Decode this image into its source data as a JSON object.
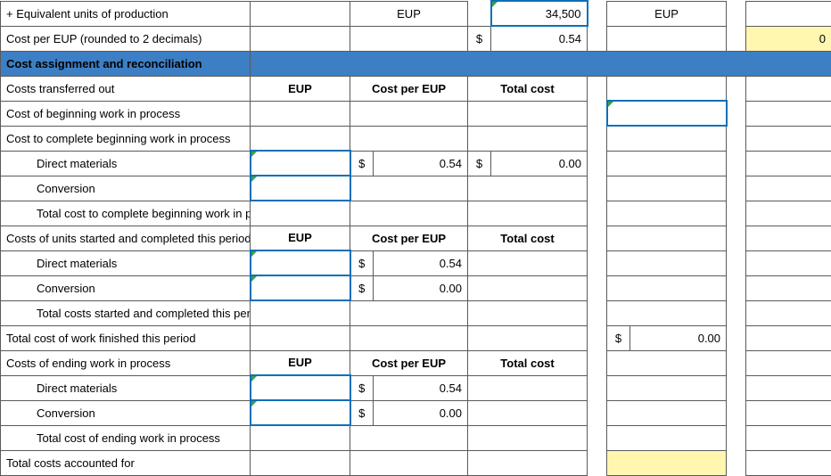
{
  "colors": {
    "section_bg": "#3d7fc4",
    "highlight_bg": "#fff6b0",
    "grid": "#5a5a5a",
    "input_border": "#0d6fb8",
    "tick": "#3aa04a"
  },
  "labels": {
    "eup": "EUP",
    "cost_per_eup": "Cost per EUP",
    "total_cost": "Total cost",
    "currency": "$"
  },
  "rows": {
    "r1": {
      "label": "+ Equivalent units of production",
      "col3_center": "EUP",
      "num2": "34,500",
      "col7_center": "EUP"
    },
    "r2": {
      "label": "Cost per EUP (rounded to 2 decimals)",
      "cur2": "$",
      "num2": "0.54",
      "r_end_hl": true,
      "r_end_val": "0"
    },
    "r3": {
      "label": "Cost assignment and reconciliation",
      "section": true
    },
    "r4": {
      "label": "Costs transferred out",
      "eup_center": "EUP",
      "col3_center": "Cost per EUP",
      "col5_center": "Total cost"
    },
    "r5": {
      "label": "Cost of beginning work in process"
    },
    "r6": {
      "label": "Cost to complete beginning work in process"
    },
    "r7": {
      "label": "Direct materials",
      "indent": 2,
      "eup_input": true,
      "cur1": "$",
      "num1": "0.54",
      "cur2": "$",
      "num2": "0.00"
    },
    "r8": {
      "label": "Conversion",
      "indent": 2,
      "eup_input": true
    },
    "r9": {
      "label": "Total cost to complete beginning work in process",
      "indent": 2
    },
    "r10": {
      "label": "Costs of units started and completed this period",
      "eup_center": "EUP",
      "col3_center": "Cost per EUP",
      "col5_center": "Total cost"
    },
    "r11": {
      "label": "Direct materials",
      "indent": 2,
      "eup_input": true,
      "cur1": "$",
      "num1": "0.54"
    },
    "r12": {
      "label": "Conversion",
      "indent": 2,
      "eup_input": true,
      "cur1": "$",
      "num1": "0.00"
    },
    "r13": {
      "label": "Total costs started and completed this period",
      "indent": 2
    },
    "r14": {
      "label": "Total cost of work finished this period",
      "cur3": "$",
      "num3": "0.00"
    },
    "r15": {
      "label": "Costs of ending work in process",
      "eup_center": "EUP",
      "col3_center": "Cost per EUP",
      "col5_center": "Total cost"
    },
    "r16": {
      "label": "Direct materials",
      "indent": 2,
      "eup_input": true,
      "cur1": "$",
      "num1": "0.54"
    },
    "r17": {
      "label": "Conversion",
      "indent": 2,
      "eup_input": true,
      "cur1": "$",
      "num1": "0.00"
    },
    "r18": {
      "label": "Total cost of ending work in process",
      "indent": 2
    },
    "r19": {
      "label": "Total costs accounted for",
      "num3_hl": true
    }
  }
}
